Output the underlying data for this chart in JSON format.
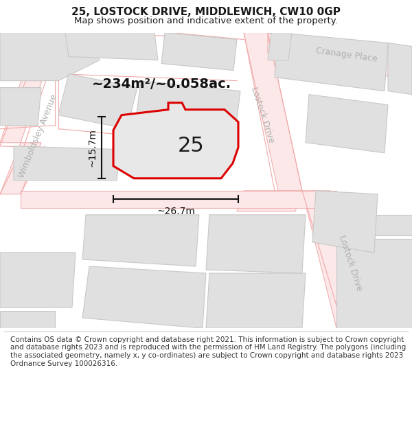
{
  "title": "25, LOSTOCK DRIVE, MIDDLEWICH, CW10 0GP",
  "subtitle": "Map shows position and indicative extent of the property.",
  "footer": "Contains OS data © Crown copyright and database right 2021. This information is subject to Crown copyright and database rights 2023 and is reproduced with the permission of HM Land Registry. The polygons (including the associated geometry, namely x, y co-ordinates) are subject to Crown copyright and database rights 2023 Ordnance Survey 100026316.",
  "area_label": "~234m²/~0.058ac.",
  "property_number": "25",
  "dim_width": "~26.7m",
  "dim_height": "~15.7m",
  "map_bg": "#f5f5f5",
  "road_line_color": "#f0b0b0",
  "building_fill": "#e0e0e0",
  "building_outline": "#c8c8c8",
  "property_fill": "#e8e8e8",
  "property_outline": "#dd0000",
  "dim_line_color": "#111111",
  "street_label_color": "#b0b0b0",
  "title_fontsize": 11,
  "subtitle_fontsize": 9.5,
  "footer_fontsize": 7.5,
  "area_fontsize": 14,
  "property_num_fontsize": 22,
  "dim_fontsize": 10,
  "street_fontsize": 9,
  "title_weight": "bold"
}
